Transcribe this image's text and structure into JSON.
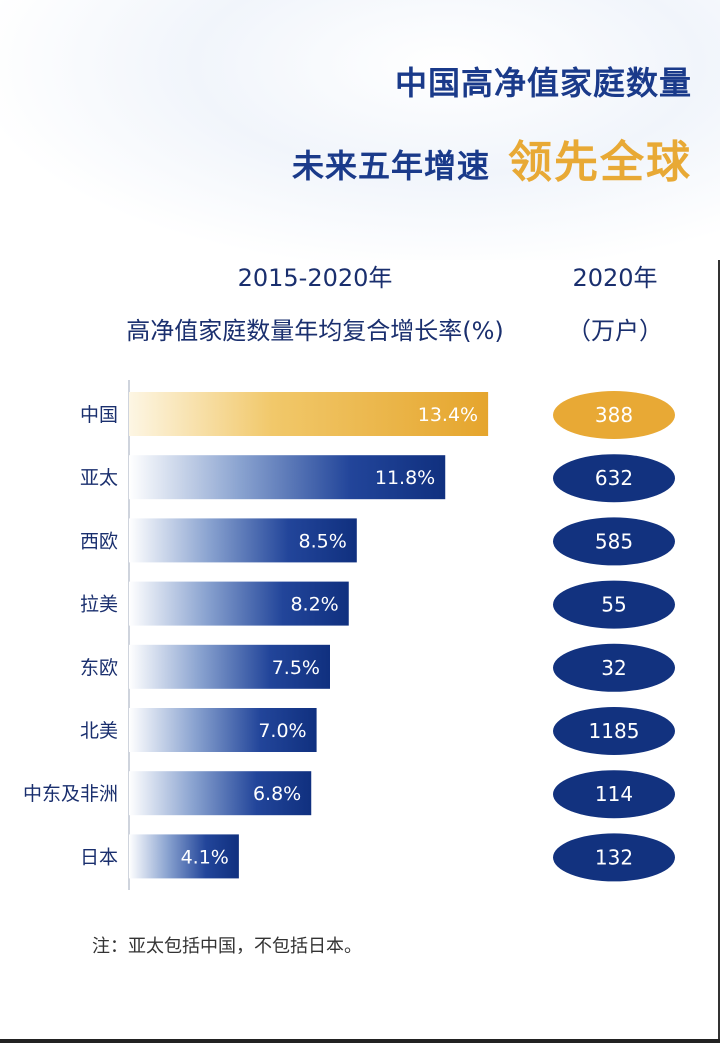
{
  "header": {
    "title_line1": "中国高净值家庭数量",
    "title_line2": "未来五年增速",
    "title_highlight": "领先全球"
  },
  "column_headers": {
    "left_line1": "2015-2020年",
    "left_line2": "高净值家庭数量年均复合增长率(%)",
    "right_line1": "2020年",
    "right_line2": "（万户）"
  },
  "footnote": "注：亚太包括中国，不包括日本。",
  "colors": {
    "highlight": "#e8a935",
    "primary": "#1a3a8a"
  },
  "chart_data": {
    "type": "bar",
    "orientation": "horizontal",
    "categories": [
      "中国",
      "亚太",
      "西欧",
      "拉美",
      "东欧",
      "北美",
      "中东及非洲",
      "日本"
    ],
    "values": [
      13.4,
      11.8,
      8.5,
      8.2,
      7.5,
      7.0,
      6.8,
      4.1
    ],
    "value_labels": [
      "13.4%",
      "11.8%",
      "8.5%",
      "8.2%",
      "7.5%",
      "7.0%",
      "6.8%",
      "4.1%"
    ],
    "households_2020": [
      "388",
      "632",
      "585",
      "55",
      "32",
      "1185",
      "114",
      "132"
    ],
    "highlight_index": 0,
    "grid": false
  }
}
